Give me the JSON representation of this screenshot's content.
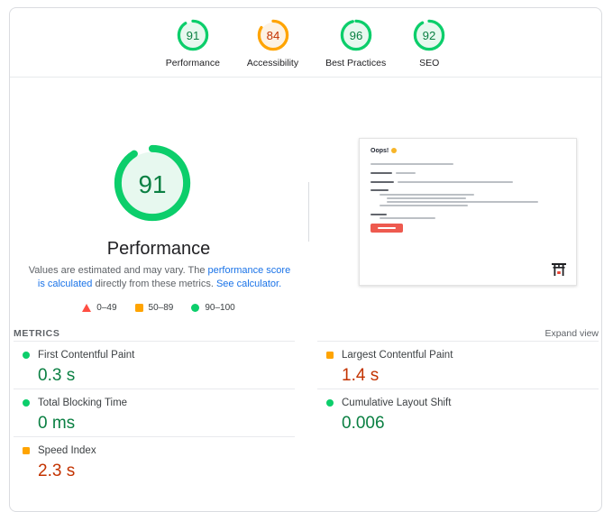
{
  "header": {
    "categories": [
      {
        "label": "Performance",
        "score": "91",
        "status": "pass"
      },
      {
        "label": "Accessibility",
        "score": "84",
        "status": "average"
      },
      {
        "label": "Best Practices",
        "score": "96",
        "status": "pass"
      },
      {
        "label": "SEO",
        "score": "92",
        "status": "pass"
      }
    ]
  },
  "performance_section": {
    "gauge": {
      "score": "91",
      "status": "pass"
    },
    "title": "Performance",
    "description": {
      "text_before": "Values are estimated and may vary. The ",
      "link1": "performance score is calculated",
      "text_middle": " directly from these metrics. ",
      "link2": "See calculator."
    },
    "legend": [
      {
        "range": "0–49",
        "rating": "fail"
      },
      {
        "range": "50–89",
        "rating": "average"
      },
      {
        "range": "90–100",
        "rating": "pass"
      }
    ],
    "screenshot": {
      "heading": "Oops!"
    }
  },
  "metrics": {
    "title": "METRICS",
    "expand_label": "Expand view",
    "items": [
      {
        "label": "First Contentful Paint",
        "value": "0.3 s",
        "rating": "pass"
      },
      {
        "label": "Largest Contentful Paint",
        "value": "1.4 s",
        "rating": "average"
      },
      {
        "label": "Total Blocking Time",
        "value": "0 ms",
        "rating": "pass"
      },
      {
        "label": "Cumulative Layout Shift",
        "value": "0.006",
        "rating": "pass"
      },
      {
        "label": "Speed Index",
        "value": "2.3 s",
        "rating": "average"
      }
    ]
  },
  "colors": {
    "pass": {
      "ring": "#0cce6b",
      "fill": "#e7f8ef",
      "text": "#0b8043",
      "icon": "#0cce6b"
    },
    "average": {
      "ring": "#ffa400",
      "fill": "#fdf2e3",
      "text": "#c33300",
      "icon": "#ffa400"
    },
    "fail": {
      "ring": "#ff4e42",
      "fill": "#fdeeed",
      "text": "#c5221f",
      "icon": "#ff4e42"
    },
    "link": "#1a73e8"
  }
}
